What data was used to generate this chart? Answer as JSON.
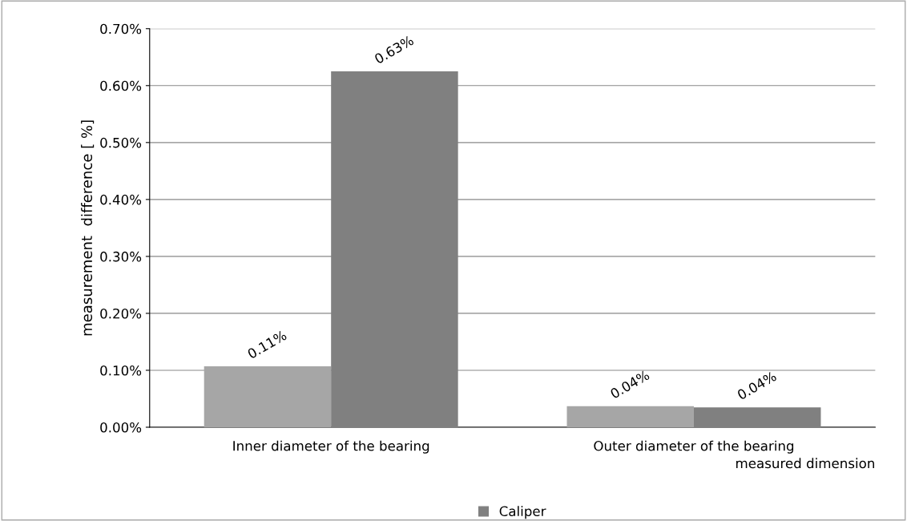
{
  "chart_data": {
    "type": "bar",
    "ylabel": "measurement  difference [ %]",
    "xlabel": "measured dimension",
    "categories": [
      "Inner diameter of the bearing",
      "Outer diameter of the bearing"
    ],
    "series": [
      {
        "color": "#a6a6a6",
        "values": [
          0.107,
          0.037
        ],
        "value_labels": [
          "0.11%",
          "0.04%"
        ]
      },
      {
        "name": "Caliper",
        "color": "#808080",
        "values": [
          0.625,
          0.035
        ],
        "value_labels": [
          "0.63%",
          "0.04%"
        ]
      }
    ],
    "ylim": [
      0,
      0.7
    ],
    "yticks": [
      {
        "value": 0,
        "label": "0.00%"
      },
      {
        "value": 0.1,
        "label": "0.10%"
      },
      {
        "value": 0.2,
        "label": "0.20%"
      },
      {
        "value": 0.3,
        "label": "0.30%"
      },
      {
        "value": 0.4,
        "label": "0.40%"
      },
      {
        "value": 0.5,
        "label": "0.50%"
      },
      {
        "value": 0.6,
        "label": "0.60%"
      },
      {
        "value": 0.7,
        "label": "0.70%"
      }
    ],
    "grid": "y",
    "legend": "bottom"
  }
}
